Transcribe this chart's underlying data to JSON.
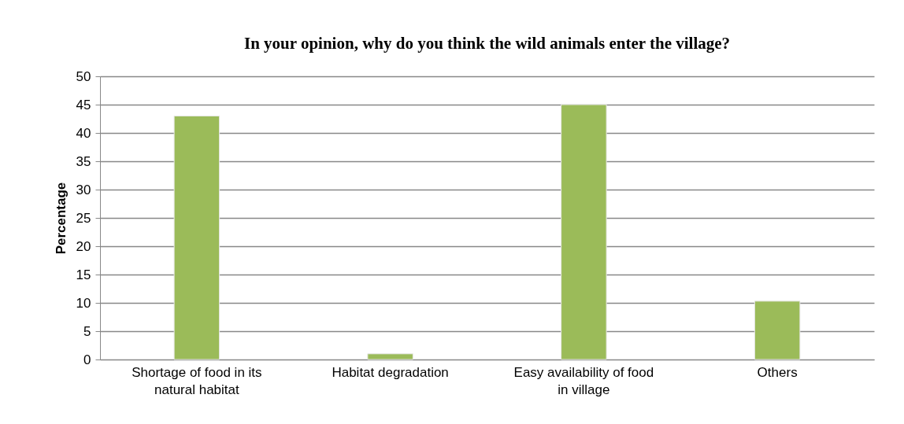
{
  "chart_data": {
    "type": "bar",
    "title": "In your opinion, why do you think the wild animals enter the village?",
    "ylabel": "Percentage",
    "categories": [
      "Shortage of food in its natural habitat",
      "Habitat degradation",
      "Easy availability of food in village",
      "Others"
    ],
    "values": [
      43,
      1,
      45,
      10.3
    ],
    "color": "#9bbb59",
    "ylim": [
      0,
      50
    ],
    "yticks": [
      0,
      5,
      10,
      15,
      20,
      25,
      30,
      35,
      40,
      45,
      50
    ],
    "grid": "y"
  }
}
